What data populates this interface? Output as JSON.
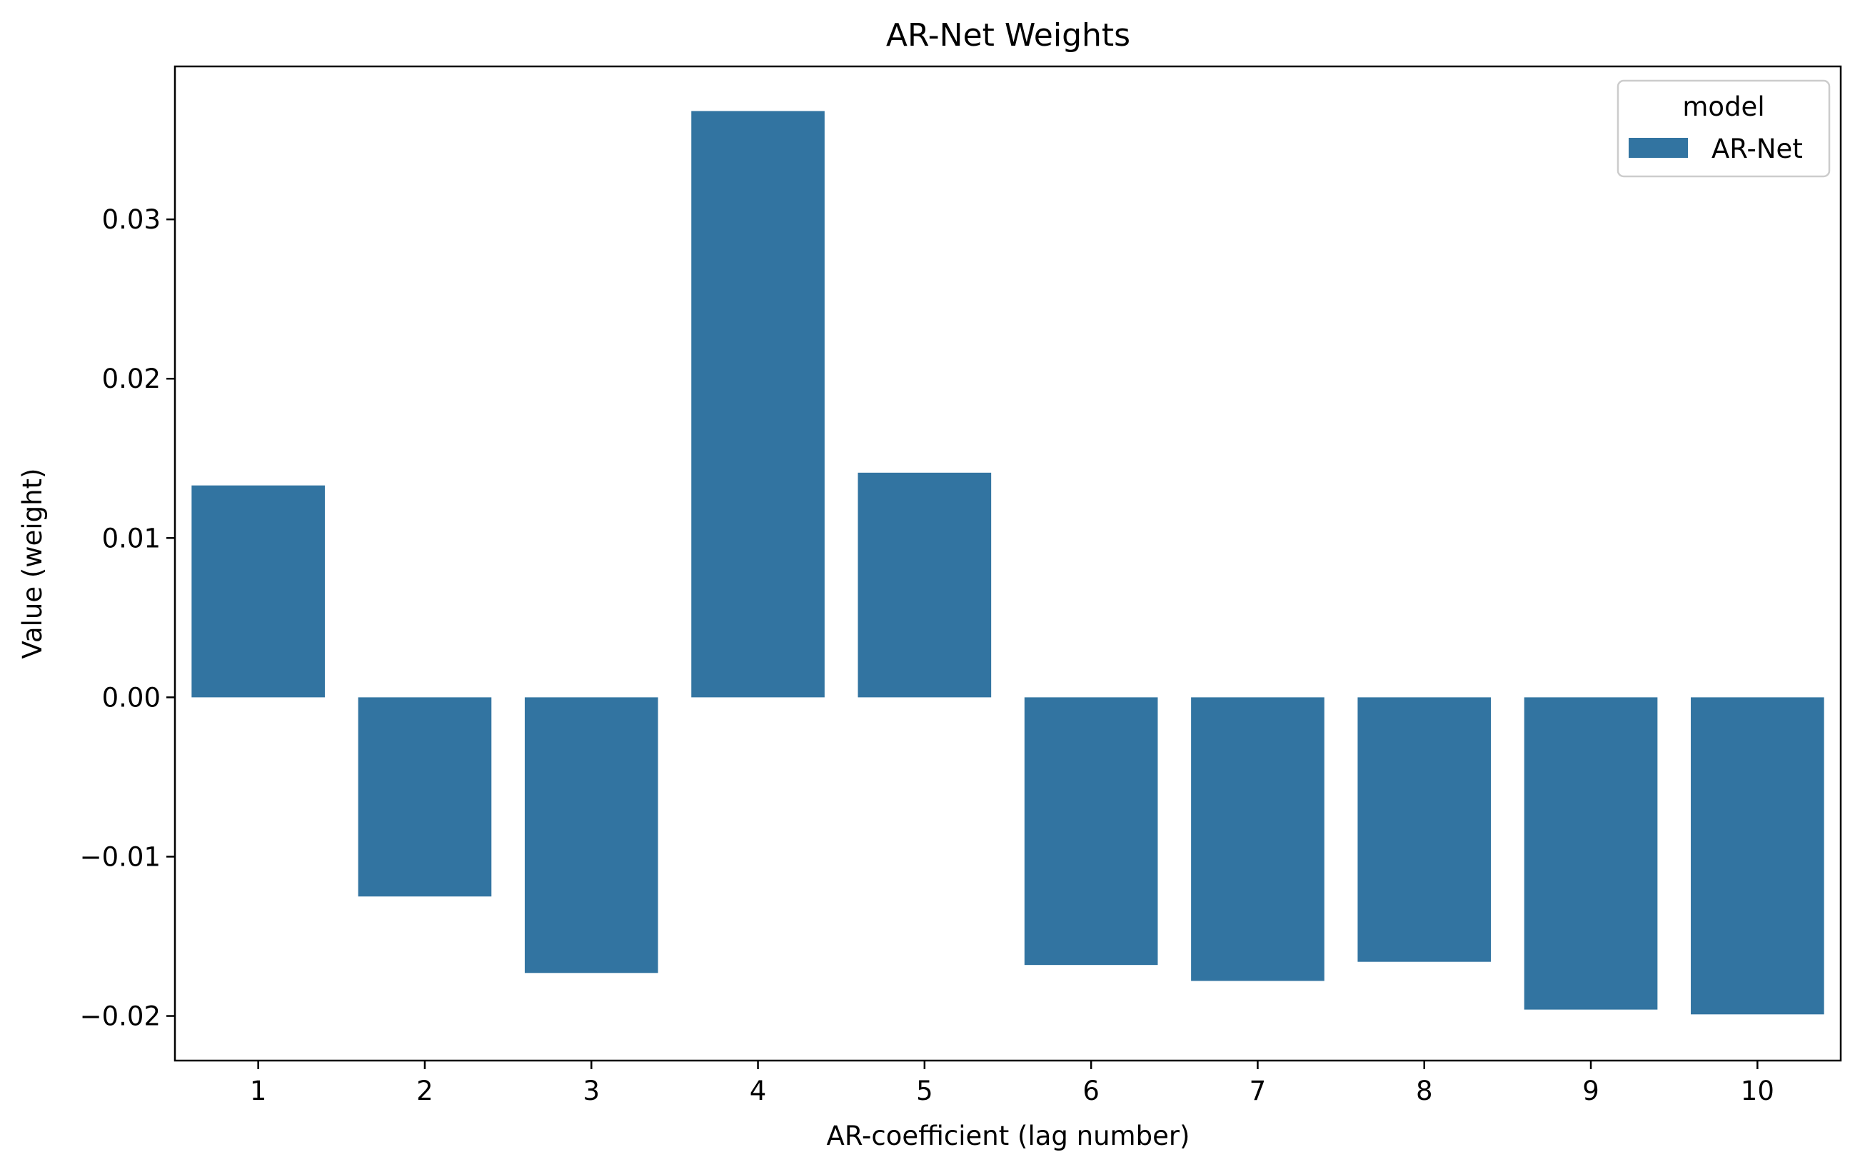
{
  "chart_data": {
    "type": "bar",
    "title": "AR-Net Weights",
    "xlabel": "AR-coefficient (lag number)",
    "ylabel": "Value (weight)",
    "categories": [
      "1",
      "2",
      "3",
      "4",
      "5",
      "6",
      "7",
      "8",
      "9",
      "10"
    ],
    "series": [
      {
        "name": "AR-Net",
        "values": [
          0.0133,
          -0.0125,
          -0.0173,
          0.0368,
          0.0141,
          -0.0168,
          -0.0178,
          -0.0166,
          -0.0196,
          -0.0199
        ]
      }
    ],
    "ylim": [
      -0.0228,
      0.0396
    ],
    "yticks": [
      -0.02,
      -0.01,
      0.0,
      0.01,
      0.02,
      0.03
    ],
    "ytick_labels": [
      "−0.02",
      "−0.01",
      "0.00",
      "0.01",
      "0.02",
      "0.03"
    ],
    "grid": false,
    "legend": {
      "title": "model",
      "position": "top-right",
      "entries": [
        "AR-Net"
      ]
    },
    "colors": {
      "bar": "#3274a1",
      "axis": "#000000",
      "legend_border": "#cccccc"
    }
  }
}
